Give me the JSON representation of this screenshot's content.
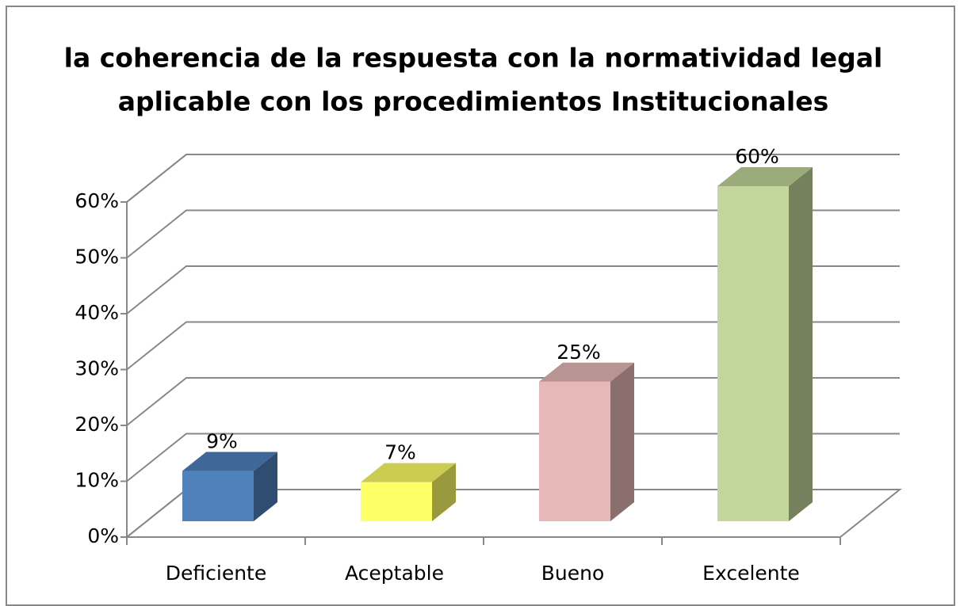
{
  "chart_data": {
    "type": "bar3d",
    "title": [
      "la coherencia de la respuesta con la normatividad legal",
      "aplicable con los procedimientos Institucionales"
    ],
    "categories": [
      "Deficiente",
      "Aceptable",
      "Bueno",
      "Excelente"
    ],
    "values": [
      9,
      7,
      25,
      60
    ],
    "value_labels": [
      "9%",
      "7%",
      "25%",
      "60%"
    ],
    "colors": [
      "#4f81bd",
      "#ffff66",
      "#e6b9b8",
      "#c3d69b"
    ],
    "ylim": [
      0,
      60
    ],
    "yticks": [
      {
        "value": 0,
        "label": "0%"
      },
      {
        "value": 10,
        "label": "10%"
      },
      {
        "value": 20,
        "label": "20%"
      },
      {
        "value": 30,
        "label": "30%"
      },
      {
        "value": 40,
        "label": "40%"
      },
      {
        "value": 50,
        "label": "50%"
      },
      {
        "value": 60,
        "label": "60%"
      }
    ],
    "grid": true
  }
}
